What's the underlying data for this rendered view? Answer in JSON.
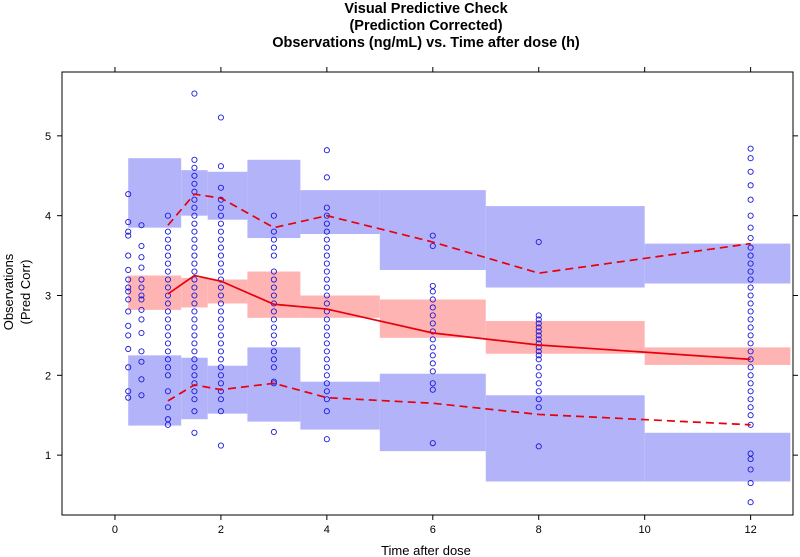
{
  "chart_data": {
    "type": "scatter",
    "title_lines": [
      "Visual Predictive Check",
      "(Prediction Corrected)",
      "Observations (ng/mL) vs. Time after dose (h)"
    ],
    "xlabel": "Time after dose",
    "ylabel_lines": [
      "Observations",
      "(Pred Corr)"
    ],
    "xlim": [
      -1.0,
      12.8
    ],
    "ylim": [
      0.25,
      5.8
    ],
    "x_ticks": [
      0,
      2,
      4,
      6,
      8,
      10,
      12
    ],
    "y_ticks": [
      1,
      2,
      3,
      4,
      5
    ],
    "bins": [
      {
        "x0": 0.25,
        "x1": 1.25,
        "lo": [
          1.37,
          2.25
        ],
        "med": [
          2.82,
          3.25
        ],
        "hi": [
          3.85,
          4.72
        ]
      },
      {
        "x0": 1.25,
        "x1": 1.75,
        "lo": [
          1.45,
          2.22
        ],
        "med": [
          2.85,
          3.22
        ],
        "hi": [
          4.0,
          4.57
        ]
      },
      {
        "x0": 1.75,
        "x1": 2.5,
        "lo": [
          1.52,
          2.12
        ],
        "med": [
          2.9,
          3.2
        ],
        "hi": [
          3.95,
          4.55
        ]
      },
      {
        "x0": 2.5,
        "x1": 3.5,
        "lo": [
          1.42,
          2.35
        ],
        "med": [
          2.72,
          3.3
        ],
        "hi": [
          3.72,
          4.7
        ]
      },
      {
        "x0": 3.5,
        "x1": 5.0,
        "lo": [
          1.32,
          1.92
        ],
        "med": [
          2.72,
          3.0
        ],
        "hi": [
          3.77,
          4.32
        ]
      },
      {
        "x0": 5.0,
        "x1": 7.0,
        "lo": [
          1.05,
          2.02
        ],
        "med": [
          2.47,
          2.95
        ],
        "hi": [
          3.32,
          4.32
        ]
      },
      {
        "x0": 7.0,
        "x1": 10.0,
        "lo": [
          0.67,
          1.75
        ],
        "med": [
          2.27,
          2.68
        ],
        "hi": [
          3.1,
          4.12
        ]
      },
      {
        "x0": 10.0,
        "x1": 12.75,
        "lo": [
          0.67,
          1.28
        ],
        "med": [
          2.13,
          2.35
        ],
        "hi": [
          3.15,
          3.65
        ]
      }
    ],
    "series": [
      {
        "name": "Observed 5th percentile",
        "style": "dashed",
        "x": [
          1.0,
          1.5,
          2.0,
          3.0,
          4.0,
          6.0,
          8.0,
          12.0
        ],
        "values": [
          1.68,
          1.88,
          1.82,
          1.9,
          1.72,
          1.65,
          1.51,
          1.38
        ]
      },
      {
        "name": "Observed median",
        "style": "solid",
        "x": [
          1.0,
          1.5,
          2.0,
          3.0,
          4.0,
          6.0,
          8.0,
          12.0
        ],
        "values": [
          3.02,
          3.25,
          3.18,
          2.89,
          2.83,
          2.53,
          2.38,
          2.2
        ]
      },
      {
        "name": "Observed 95th percentile",
        "style": "dashed",
        "x": [
          1.0,
          1.5,
          2.0,
          3.0,
          4.0,
          6.0,
          8.0,
          12.0
        ],
        "values": [
          3.88,
          4.27,
          4.22,
          3.85,
          4.0,
          3.67,
          3.28,
          3.65
        ]
      }
    ],
    "observations": [
      {
        "x": 0.25,
        "y": [
          4.27,
          3.92,
          3.8,
          3.75,
          3.5,
          3.32,
          3.2,
          3.1,
          3.05,
          2.95,
          2.8,
          2.62,
          2.5,
          2.33,
          2.1,
          1.8,
          1.72
        ]
      },
      {
        "x": 0.5,
        "y": [
          3.88,
          3.62,
          3.48,
          3.35,
          3.2,
          3.1,
          3.0,
          2.95,
          2.82,
          2.7,
          2.53,
          2.3,
          2.17,
          1.95,
          1.75
        ]
      },
      {
        "x": 1.0,
        "y": [
          4.0,
          3.8,
          3.7,
          3.6,
          3.5,
          3.4,
          3.3,
          3.2,
          3.1,
          3.0,
          2.9,
          2.8,
          2.7,
          2.6,
          2.5,
          2.4,
          2.3,
          2.2,
          2.1,
          2.0,
          1.8,
          1.6,
          1.45,
          1.38
        ]
      },
      {
        "x": 1.5,
        "y": [
          5.53,
          4.7,
          4.6,
          4.5,
          4.4,
          4.3,
          4.2,
          4.1,
          4.0,
          3.9,
          3.8,
          3.7,
          3.6,
          3.5,
          3.4,
          3.3,
          3.2,
          3.1,
          3.0,
          2.9,
          2.8,
          2.7,
          2.6,
          2.5,
          2.4,
          2.3,
          2.2,
          2.1,
          2.0,
          1.9,
          1.8,
          1.7,
          1.55,
          1.28
        ]
      },
      {
        "x": 2.0,
        "y": [
          5.23,
          4.62,
          4.35,
          4.2,
          4.1,
          4.0,
          3.9,
          3.8,
          3.7,
          3.6,
          3.5,
          3.4,
          3.3,
          3.2,
          3.1,
          3.0,
          2.9,
          2.8,
          2.7,
          2.6,
          2.5,
          2.4,
          2.3,
          2.2,
          2.1,
          2.0,
          1.9,
          1.8,
          1.7,
          1.55,
          1.12
        ]
      },
      {
        "x": 3.0,
        "y": [
          4.0,
          3.8,
          3.7,
          3.6,
          3.5,
          3.3,
          3.2,
          3.1,
          3.0,
          2.9,
          2.8,
          2.7,
          2.6,
          2.5,
          2.4,
          2.3,
          2.2,
          2.1,
          1.92,
          1.9,
          1.29
        ]
      },
      {
        "x": 4.0,
        "y": [
          4.82,
          4.48,
          4.1,
          4.0,
          3.9,
          3.8,
          3.7,
          3.6,
          3.5,
          3.4,
          3.3,
          3.2,
          3.1,
          3.0,
          2.9,
          2.8,
          2.7,
          2.6,
          2.5,
          2.4,
          2.3,
          2.2,
          2.1,
          2.0,
          1.9,
          1.8,
          1.7,
          1.55,
          1.2
        ]
      },
      {
        "x": 6.0,
        "y": [
          3.75,
          3.62,
          3.12,
          3.05,
          2.95,
          2.85,
          2.75,
          2.65,
          2.55,
          2.45,
          2.35,
          2.25,
          2.15,
          2.05,
          1.9,
          1.82,
          1.15
        ]
      },
      {
        "x": 8.0,
        "y": [
          3.67,
          2.75,
          2.7,
          2.65,
          2.6,
          2.55,
          2.5,
          2.45,
          2.4,
          2.35,
          2.3,
          2.25,
          2.2,
          2.1,
          2.0,
          1.9,
          1.8,
          1.7,
          1.6,
          1.11
        ]
      },
      {
        "x": 12.0,
        "y": [
          4.84,
          4.72,
          4.55,
          4.38,
          4.2,
          4.0,
          3.85,
          3.72,
          3.6,
          3.5,
          3.4,
          3.3,
          3.2,
          3.1,
          3.0,
          2.9,
          2.8,
          2.7,
          2.6,
          2.5,
          2.4,
          2.3,
          2.2,
          2.1,
          2.0,
          1.9,
          1.8,
          1.7,
          1.6,
          1.5,
          1.38,
          1.02,
          0.95,
          0.82,
          0.65,
          0.41
        ]
      }
    ],
    "colors": {
      "band_outer": "#b3b3fa",
      "band_median": "#ffb4b4",
      "line": "#e8000b",
      "points": "#1a1adb"
    }
  }
}
